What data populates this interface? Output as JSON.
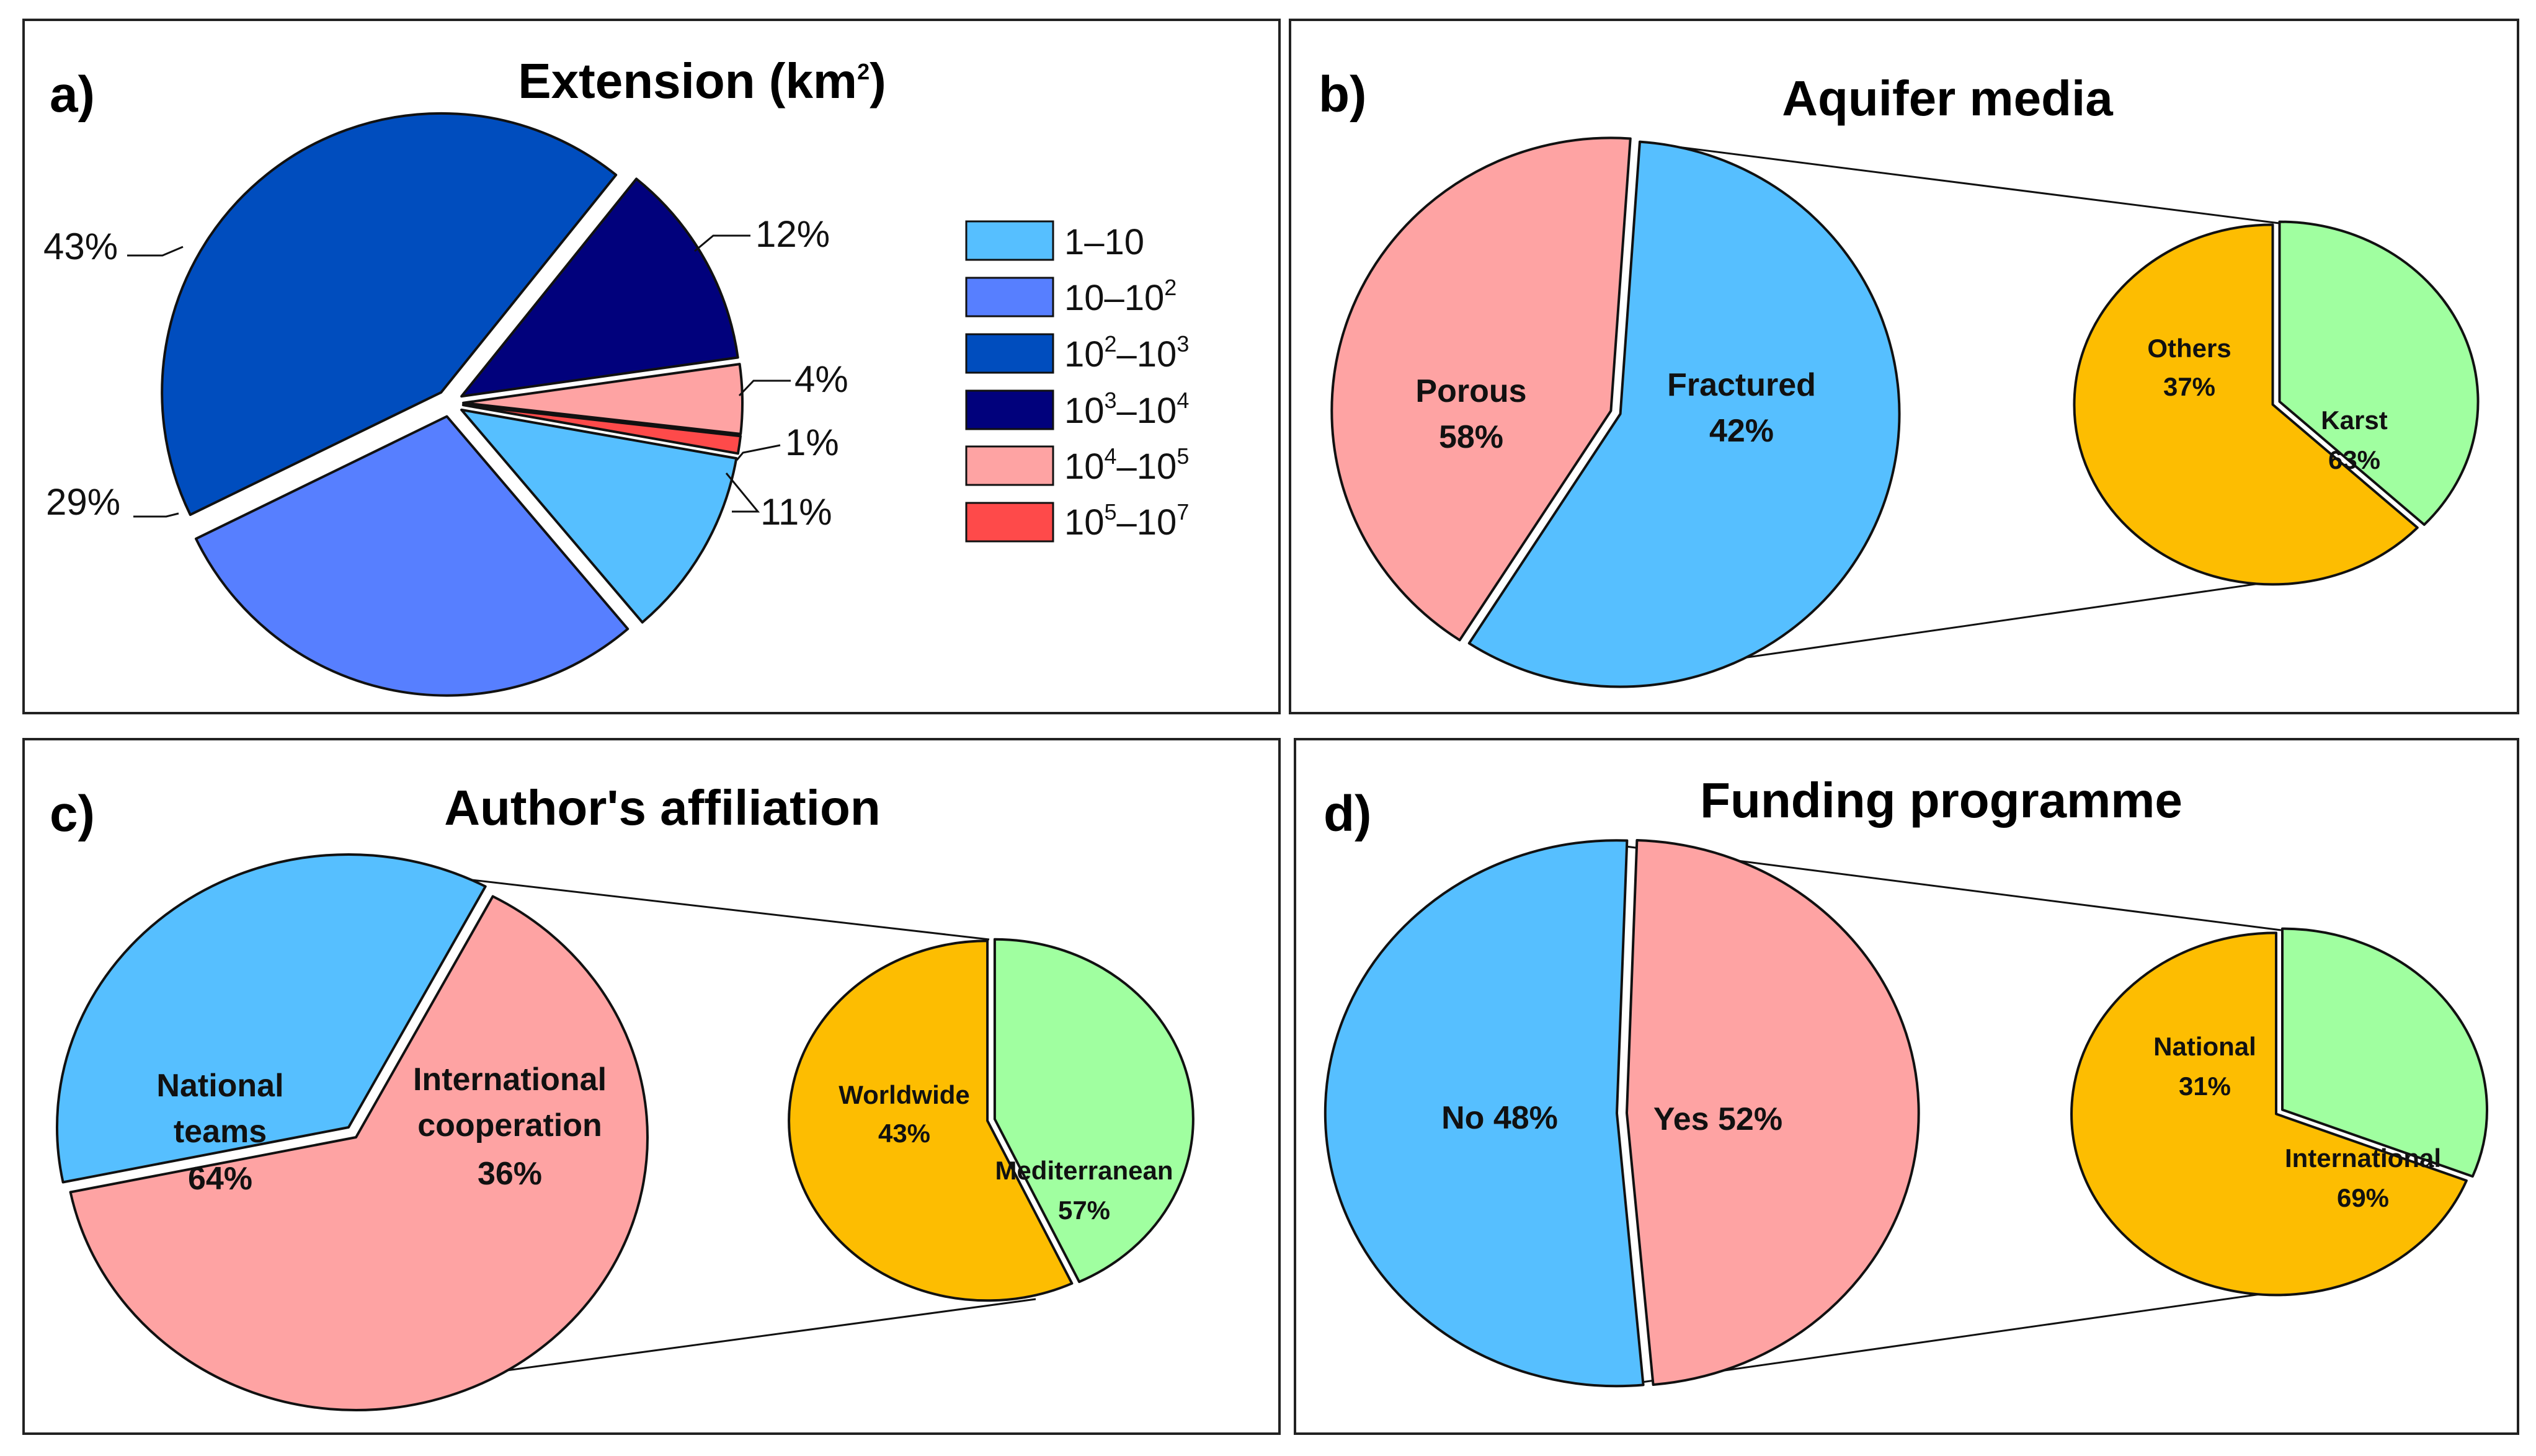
{
  "colors": {
    "light_blue": "#56bfff",
    "mid_blue": "#577fff",
    "royal_blue": "#004dbe",
    "navy": "#01017c",
    "pink": "#fea3a3",
    "red": "#fe4a4a",
    "green": "#a0ffa0",
    "gold": "#fdbd01"
  },
  "chart_data": [
    {
      "panel": "a)",
      "type": "pie",
      "title": "Extension (km2)",
      "title_text": "Extension (km",
      "title_sup": "2",
      "title_close": ")",
      "legend_position": "right",
      "slices": [
        {
          "label": "1–10",
          "value": 11,
          "display": "11%",
          "color": "#56bfff"
        },
        {
          "label": "10–10^2",
          "value": 29,
          "display": "29%",
          "color": "#577fff"
        },
        {
          "label": "10^2–10^3",
          "value": 43,
          "display": "43%",
          "color": "#004dbe"
        },
        {
          "label": "10^3–10^4",
          "value": 12,
          "display": "12%",
          "color": "#01017c"
        },
        {
          "label": "10^4–10^5",
          "value": 4,
          "display": "4%",
          "color": "#fea3a3"
        },
        {
          "label": "10^5–10^7",
          "value": 1,
          "display": "1%",
          "color": "#fe4a4a"
        }
      ],
      "legend": [
        {
          "base1": "1–10",
          "sup1": "",
          "mid": "",
          "sup2": ""
        },
        {
          "base1": "10–10",
          "sup1": "2",
          "mid": "",
          "sup2": ""
        },
        {
          "base1": "10",
          "sup1": "2",
          "mid": "–10",
          "sup2": "3"
        },
        {
          "base1": "10",
          "sup1": "3",
          "mid": "–10",
          "sup2": "4"
        },
        {
          "base1": "10",
          "sup1": "4",
          "mid": "–10",
          "sup2": "5"
        },
        {
          "base1": "10",
          "sup1": "5",
          "mid": "–10",
          "sup2": "7"
        }
      ]
    },
    {
      "panel": "b)",
      "type": "pie",
      "title": "Aquifer media",
      "slices": [
        {
          "label": "Porous",
          "value": 58,
          "display": "58%",
          "color": "#56bfff"
        },
        {
          "label": "Fractured",
          "value": 42,
          "display": "42%",
          "color": "#fea3a3"
        }
      ],
      "breakdown_of": "Fractured",
      "breakdown": [
        {
          "label": "Others",
          "value": 37,
          "display": "37%",
          "color": "#a0ffa0"
        },
        {
          "label": "Karst",
          "value": 63,
          "display": "63%",
          "color": "#fdbd01"
        }
      ]
    },
    {
      "panel": "c)",
      "type": "pie",
      "title": "Author's affiliation",
      "slices": [
        {
          "label": "National teams",
          "line1": "National",
          "line2": "teams",
          "value": 64,
          "display": "64%",
          "color": "#fea3a3"
        },
        {
          "label": "International cooperation",
          "line1": "International",
          "line2": "cooperation",
          "value": 36,
          "display": "36%",
          "color": "#56bfff"
        }
      ],
      "breakdown_of": "International cooperation",
      "breakdown": [
        {
          "label": "Worldwide",
          "value": 43,
          "display": "43%",
          "color": "#a0ffa0"
        },
        {
          "label": "Mediterranean",
          "value": 57,
          "display": "57%",
          "color": "#fdbd01"
        }
      ]
    },
    {
      "panel": "d)",
      "type": "pie",
      "title": "Funding programme",
      "slices": [
        {
          "label": "No",
          "value": 48,
          "display": "48%",
          "text": "No 48%",
          "color": "#fea3a3"
        },
        {
          "label": "Yes",
          "value": 52,
          "display": "52%",
          "text": "Yes 52%",
          "color": "#56bfff"
        }
      ],
      "breakdown_of": "Yes",
      "breakdown": [
        {
          "label": "National",
          "value": 31,
          "display": "31%",
          "color": "#a0ffa0"
        },
        {
          "label": "International",
          "value": 69,
          "display": "69%",
          "color": "#fdbd01"
        }
      ]
    }
  ]
}
